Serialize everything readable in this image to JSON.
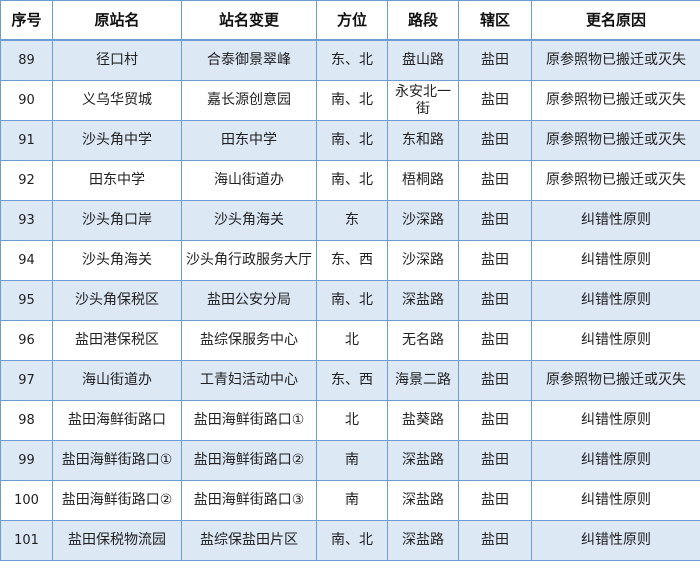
{
  "colors": {
    "border": "#6c9cd2",
    "shaded_row": "#dde8f5"
  },
  "headers": [
    "序号",
    "原站名",
    "站名变更",
    "方位",
    "路段",
    "辖区",
    "更名原因"
  ],
  "rows": [
    [
      "89",
      "径口村",
      "合泰御景翠峰",
      "东、北",
      "盘山路",
      "盐田",
      "原参照物已搬迁或灭失"
    ],
    [
      "90",
      "义乌华贸城",
      "嘉长源创意园",
      "南、北",
      "永安北一街",
      "盐田",
      "原参照物已搬迁或灭失"
    ],
    [
      "91",
      "沙头角中学",
      "田东中学",
      "南、北",
      "东和路",
      "盐田",
      "原参照物已搬迁或灭失"
    ],
    [
      "92",
      "田东中学",
      "海山街道办",
      "南、北",
      "梧桐路",
      "盐田",
      "原参照物已搬迁或灭失"
    ],
    [
      "93",
      "沙头角口岸",
      "沙头角海关",
      "东",
      "沙深路",
      "盐田",
      "纠错性原则"
    ],
    [
      "94",
      "沙头角海关",
      "沙头角行政服务大厅",
      "东、西",
      "沙深路",
      "盐田",
      "纠错性原则"
    ],
    [
      "95",
      "沙头角保税区",
      "盐田公安分局",
      "南、北",
      "深盐路",
      "盐田",
      "纠错性原则"
    ],
    [
      "96",
      "盐田港保税区",
      "盐综保服务中心",
      "北",
      "无名路",
      "盐田",
      "纠错性原则"
    ],
    [
      "97",
      "海山街道办",
      "工青妇活动中心",
      "东、西",
      "海景二路",
      "盐田",
      "原参照物已搬迁或灭失"
    ],
    [
      "98",
      "盐田海鲜街路口",
      "盐田海鲜街路口①",
      "北",
      "盐葵路",
      "盐田",
      "纠错性原则"
    ],
    [
      "99",
      "盐田海鲜街路口①",
      "盐田海鲜街路口②",
      "南",
      "深盐路",
      "盐田",
      "纠错性原则"
    ],
    [
      "100",
      "盐田海鲜街路口②",
      "盐田海鲜街路口③",
      "南",
      "深盐路",
      "盐田",
      "纠错性原则"
    ],
    [
      "101",
      "盐田保税物流园",
      "盐综保盐田片区",
      "南、北",
      "深盐路",
      "盐田",
      "纠错性原则"
    ]
  ]
}
